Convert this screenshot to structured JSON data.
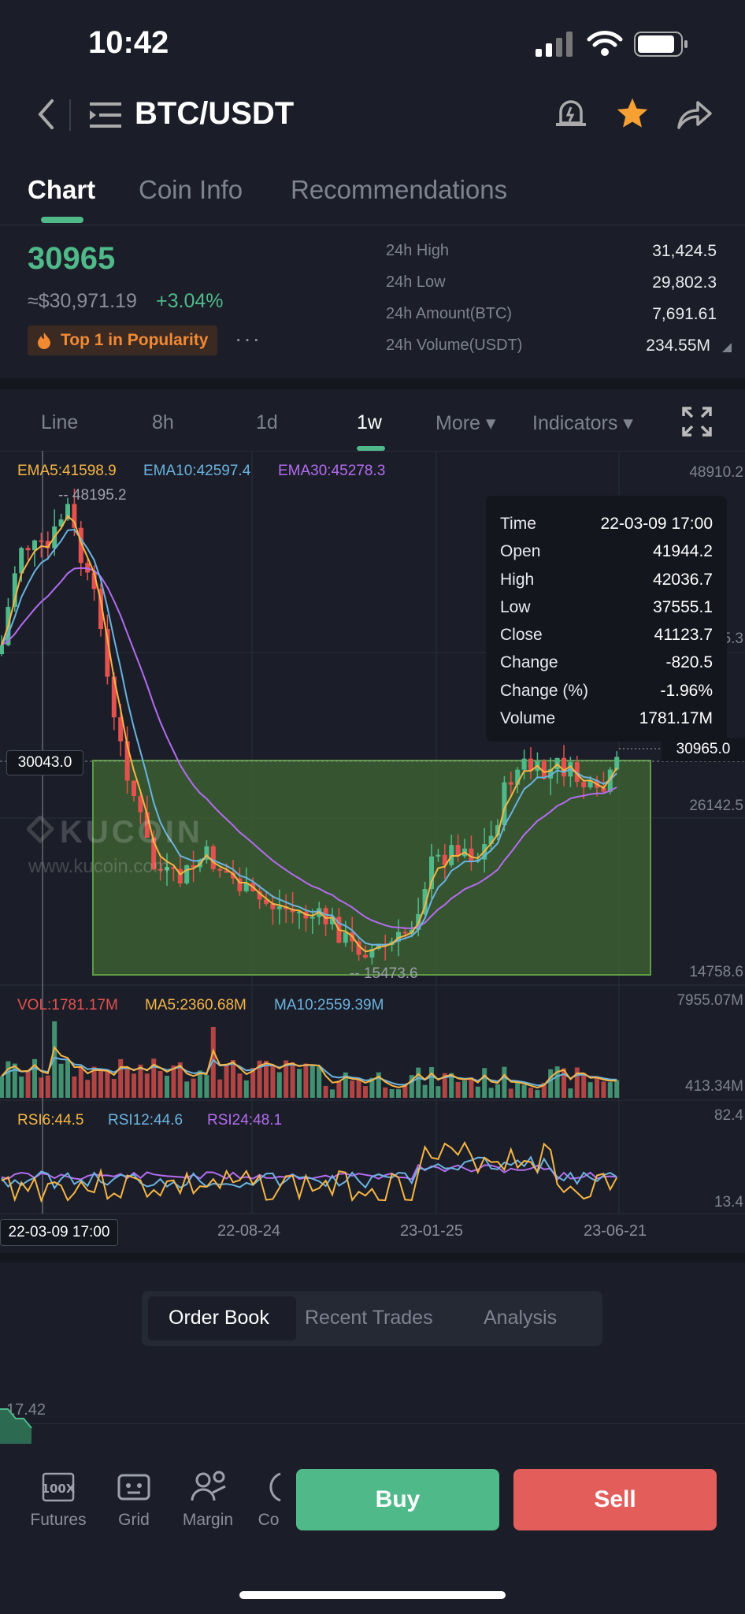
{
  "status_bar": {
    "time": "10:42"
  },
  "header": {
    "pair": "BTC/USDT"
  },
  "tabs": [
    {
      "label": "Chart"
    },
    {
      "label": "Coin Info"
    },
    {
      "label": "Recommendations"
    }
  ],
  "price": {
    "last": "30965",
    "fiat": "≈$30,971.19",
    "change_pct": "+3.04%",
    "badge": "Top 1 in Popularity",
    "more": "···"
  },
  "stats": [
    {
      "label": "24h High",
      "value": "31,424.5"
    },
    {
      "label": "24h Low",
      "value": "29,802.3"
    },
    {
      "label": "24h Amount(BTC)",
      "value": "7,691.61"
    },
    {
      "label": "24h Volume(USDT)",
      "value": "234.55M"
    }
  ],
  "intervals": [
    {
      "label": "Line"
    },
    {
      "label": "8h"
    },
    {
      "label": "1d"
    },
    {
      "label": "1w"
    },
    {
      "label": "More ▾"
    },
    {
      "label": "Indicators ▾"
    }
  ],
  "ema_legend": {
    "ema5": "EMA5:41598.9",
    "ema10": "EMA10:42597.4",
    "ema30": "EMA30:45278.3"
  },
  "price_axis": {
    "top": "48910.2",
    "mid": "26142.5",
    "low": "14758.6",
    "partial": "5.3",
    "current": "30965.0"
  },
  "chart_marks": {
    "high": "-- 48195.2",
    "low": "-- 15473.6",
    "crosshair_price": "30043.0"
  },
  "watermark": {
    "brand": "KUCOIN",
    "url": "www.kucoin.com"
  },
  "tooltip": [
    {
      "label": "Time",
      "value": "22-03-09 17:00"
    },
    {
      "label": "Open",
      "value": "41944.2"
    },
    {
      "label": "High",
      "value": "42036.7"
    },
    {
      "label": "Low",
      "value": "37555.1"
    },
    {
      "label": "Close",
      "value": "41123.7"
    },
    {
      "label": "Change",
      "value": "-820.5"
    },
    {
      "label": "Change (%)",
      "value": "-1.96%"
    },
    {
      "label": "Volume",
      "value": "1781.17M"
    }
  ],
  "vol_legend": {
    "vol": "VOL:1781.17M",
    "ma5": "MA5:2360.68M",
    "ma10": "MA10:2559.39M",
    "axis_top": "7955.07M",
    "axis_bottom": "413.34M"
  },
  "rsi_legend": {
    "rsi6": "RSI6:44.5",
    "rsi12": "RSI12:44.6",
    "rsi24": "RSI24:48.1",
    "axis_top": "82.4",
    "axis_bottom": "13.4"
  },
  "x_axis": {
    "cursor_date": "22-03-09 17:00",
    "dates": [
      "22-08-24",
      "23-01-25",
      "23-06-21"
    ]
  },
  "book_tabs": [
    {
      "label": "Order Book"
    },
    {
      "label": "Recent Trades"
    },
    {
      "label": "Analysis"
    }
  ],
  "depth": {
    "value": "17.42"
  },
  "bottom_nav": [
    {
      "label": "Futures"
    },
    {
      "label": "Grid"
    },
    {
      "label": "Margin"
    },
    {
      "label": "Co"
    }
  ],
  "actions": {
    "buy": "Buy",
    "sell": "Sell"
  },
  "colors": {
    "up": "#50b98a",
    "down": "#e5514e",
    "ema5": "#f6b545",
    "ema10": "#6bb3e0",
    "ema30": "#b46cf0",
    "zone": "#3b5e31"
  }
}
